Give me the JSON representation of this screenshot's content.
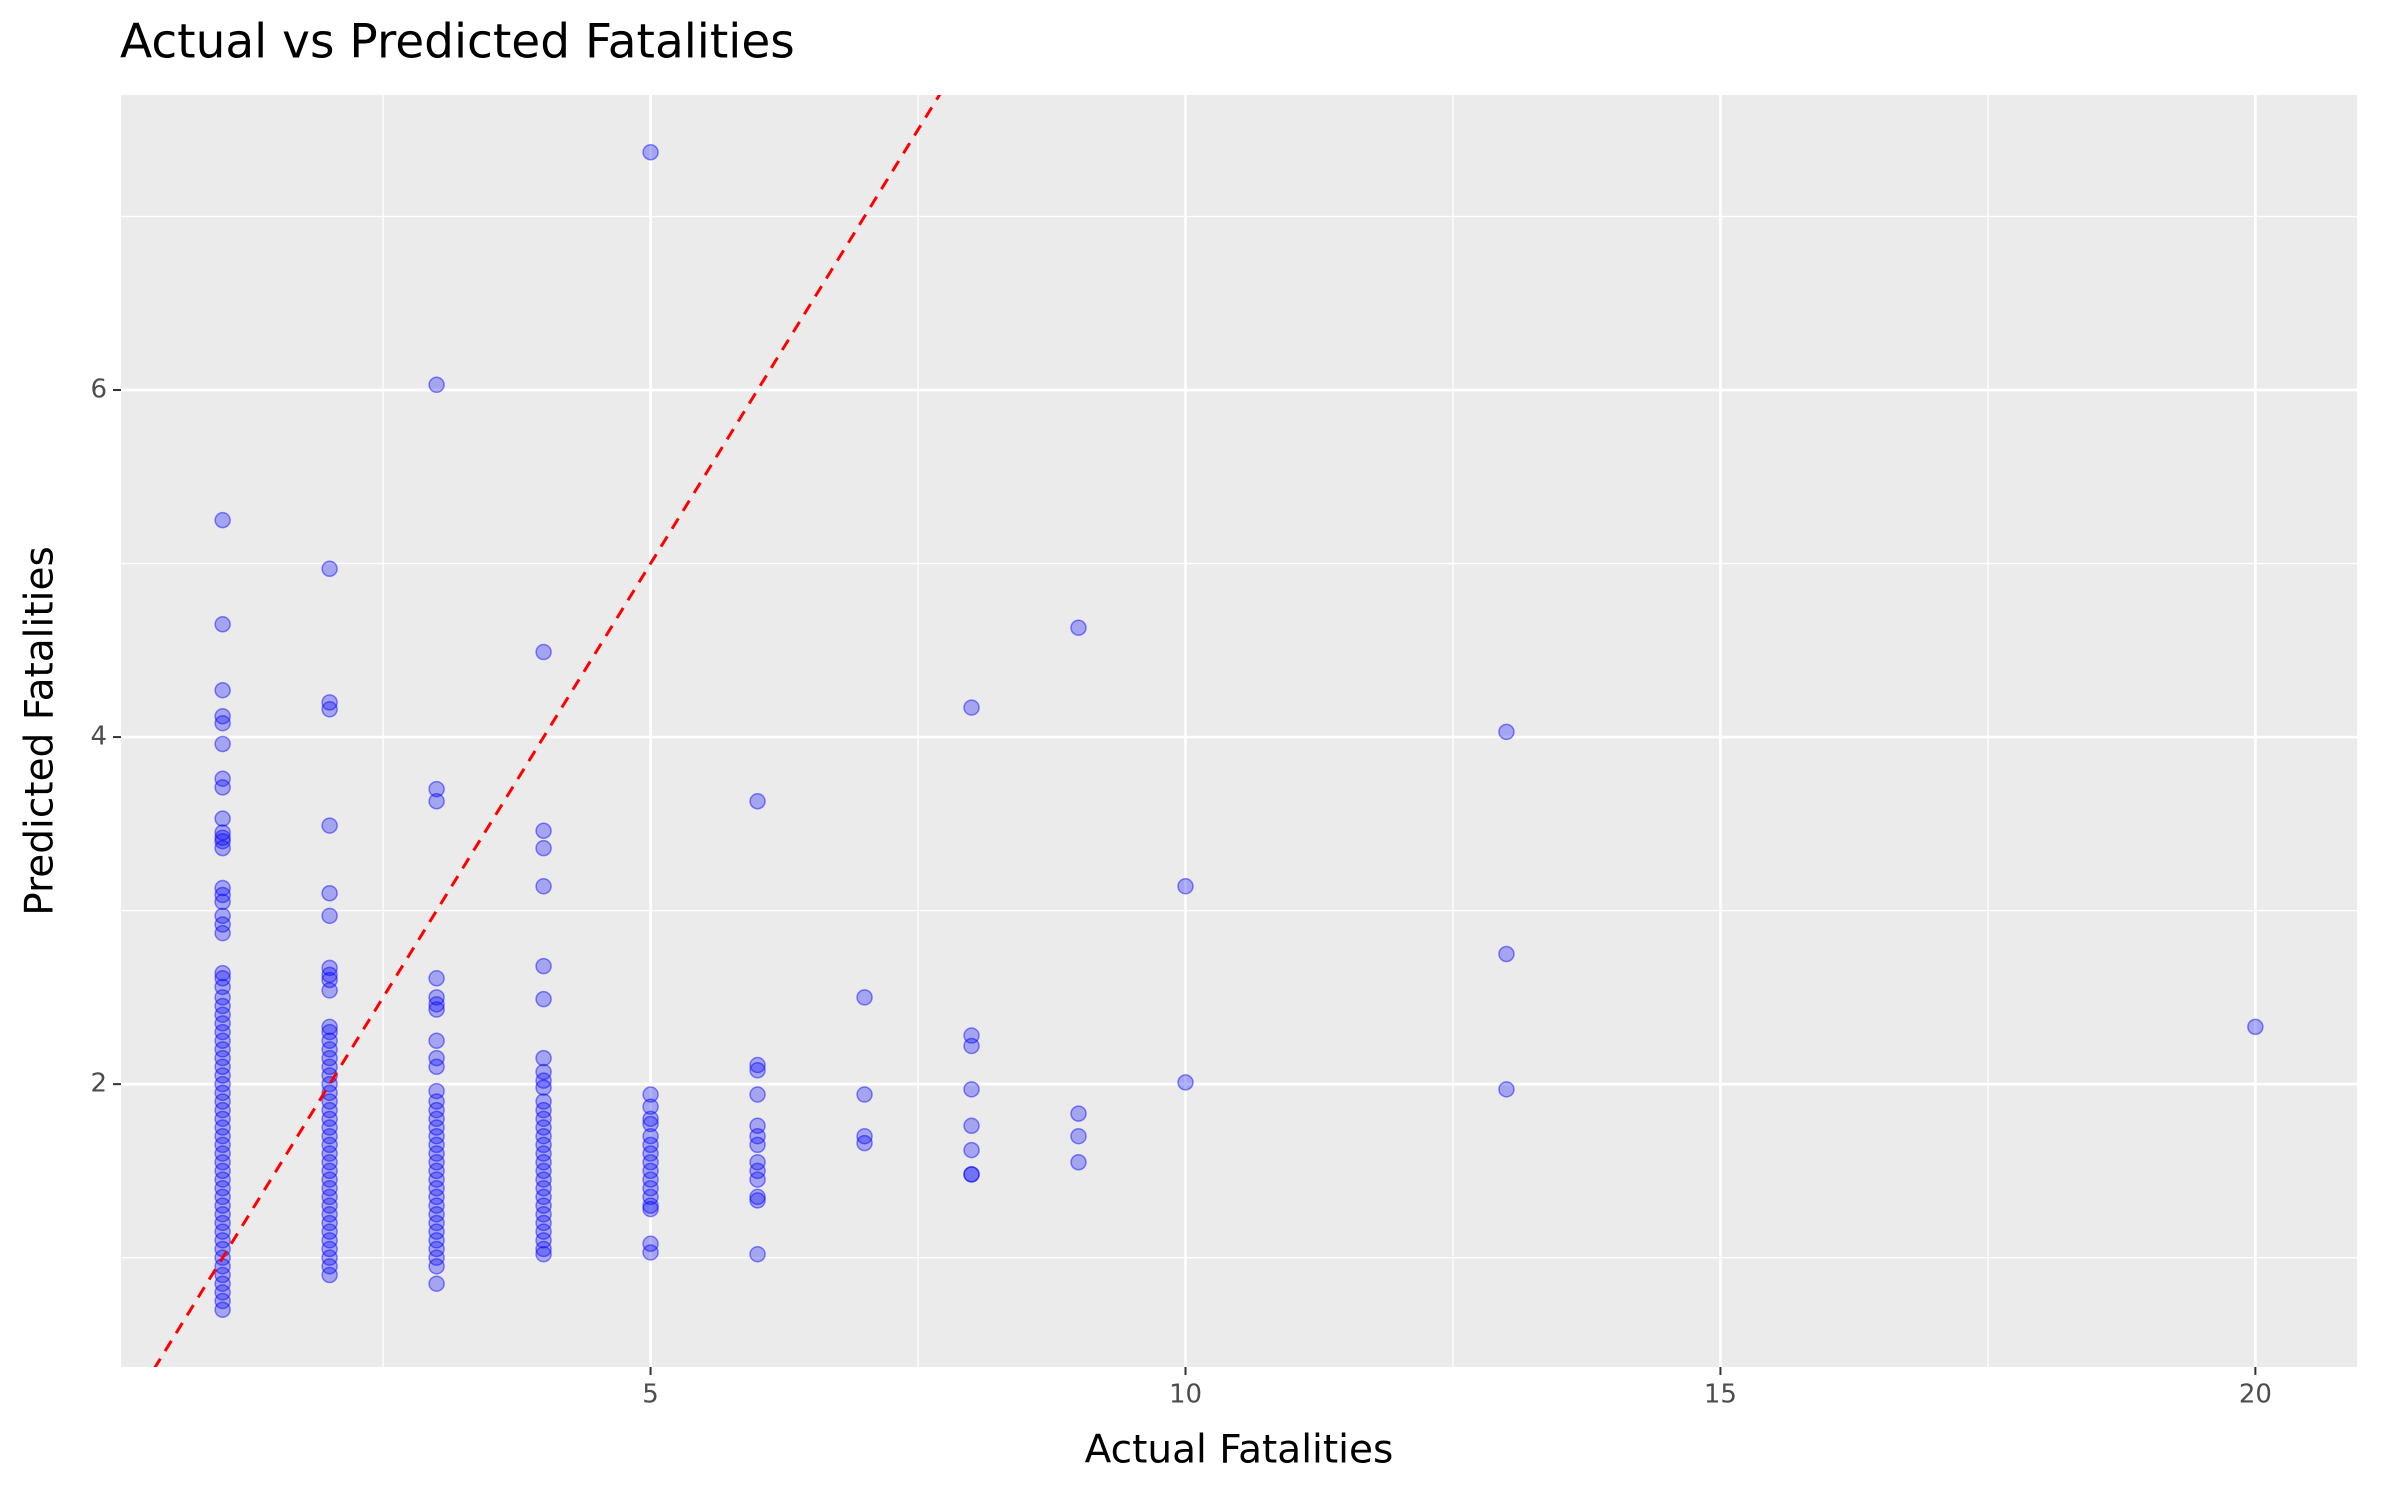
{
  "chart_data": {
    "type": "scatter",
    "title": "Actual vs Predicted Fatalities",
    "x_label": "Actual Fatalities",
    "y_label": "Predicted Fatalities",
    "color": "#0000ff",
    "grid": true,
    "xlim": [
      0.05,
      20.95
    ],
    "ylim": [
      0.37,
      7.7
    ],
    "xticks": [
      5,
      10,
      15,
      20
    ],
    "yticks": [
      2,
      4,
      6
    ],
    "xminor": [
      2.5,
      7.5,
      12.5,
      17.5
    ],
    "yminor": [
      1,
      3,
      5,
      7
    ],
    "reference_line": {
      "slope": 1,
      "intercept": 0,
      "color": "#ff0000"
    },
    "x": [
      1,
      1,
      1,
      1,
      1,
      1,
      1,
      1,
      1,
      1,
      1,
      1,
      1,
      1,
      1,
      1,
      1,
      1,
      1,
      1,
      1,
      1,
      1,
      1,
      1,
      1,
      1,
      1,
      1,
      1,
      1,
      1,
      1,
      1,
      1,
      1,
      1,
      1,
      1,
      1,
      1,
      1,
      1,
      1,
      1,
      1,
      1,
      1,
      1,
      1,
      1,
      1,
      1,
      1,
      1,
      1,
      1,
      1,
      1,
      2,
      2,
      2,
      2,
      2,
      2,
      2,
      2,
      2,
      2,
      2,
      2,
      2,
      2,
      2,
      2,
      2,
      2,
      2,
      2,
      2,
      2,
      2,
      2,
      2,
      2,
      2,
      2,
      2,
      2,
      2,
      2,
      2,
      2,
      2,
      2,
      2,
      2,
      2,
      2,
      3,
      3,
      3,
      3,
      3,
      3,
      3,
      3,
      3,
      3,
      3,
      3,
      3,
      3,
      3,
      3,
      3,
      3,
      3,
      3,
      3,
      3,
      3,
      3,
      3,
      3,
      3,
      3,
      3,
      3,
      3,
      3,
      4,
      4,
      4,
      4,
      4,
      4,
      4,
      4,
      4,
      4,
      4,
      4,
      4,
      4,
      4,
      4,
      4,
      4,
      4,
      4,
      4,
      4,
      4,
      4,
      4,
      4,
      4,
      4,
      4,
      5,
      5,
      5,
      5,
      5,
      5,
      5,
      5,
      5,
      5,
      5,
      5,
      5,
      5,
      5,
      5,
      5,
      6,
      6,
      6,
      6,
      6,
      6,
      6,
      6,
      6,
      6,
      6,
      6,
      6,
      7,
      7,
      7,
      7,
      8,
      8,
      8,
      8,
      8,
      8,
      8,
      8,
      9,
      9,
      9,
      9,
      10,
      10,
      13,
      13,
      13,
      20
    ],
    "values": [
      5.25,
      4.65,
      4.27,
      4.12,
      4.08,
      3.96,
      3.76,
      3.71,
      3.53,
      3.45,
      3.42,
      3.4,
      3.36,
      3.13,
      3.09,
      3.05,
      2.97,
      2.92,
      2.87,
      2.64,
      2.61,
      2.56,
      2.5,
      2.45,
      2.4,
      2.35,
      2.3,
      2.25,
      2.2,
      2.15,
      2.1,
      2.05,
      2.0,
      1.95,
      1.9,
      1.85,
      1.8,
      1.75,
      1.7,
      1.65,
      1.6,
      1.55,
      1.5,
      1.45,
      1.4,
      1.35,
      1.3,
      1.25,
      1.2,
      1.15,
      1.1,
      1.05,
      1.0,
      0.95,
      0.9,
      0.85,
      0.8,
      0.75,
      0.7,
      4.97,
      4.2,
      4.16,
      3.49,
      3.1,
      2.97,
      2.67,
      2.63,
      2.6,
      2.54,
      2.33,
      2.3,
      2.25,
      2.2,
      2.15,
      2.1,
      2.05,
      2.0,
      1.95,
      1.9,
      1.85,
      1.8,
      1.75,
      1.7,
      1.65,
      1.6,
      1.55,
      1.5,
      1.45,
      1.4,
      1.35,
      1.3,
      1.25,
      1.2,
      1.15,
      1.1,
      1.05,
      1.0,
      0.95,
      0.9,
      6.03,
      3.7,
      3.63,
      2.61,
      2.5,
      2.46,
      2.43,
      2.25,
      2.15,
      2.1,
      1.96,
      1.9,
      1.85,
      1.8,
      1.75,
      1.7,
      1.65,
      1.6,
      1.55,
      1.5,
      1.45,
      1.4,
      1.35,
      1.3,
      1.25,
      1.2,
      1.15,
      1.1,
      1.05,
      1.0,
      0.95,
      0.85,
      4.49,
      3.46,
      3.36,
      3.14,
      2.68,
      2.49,
      2.15,
      2.07,
      2.02,
      1.98,
      1.9,
      1.85,
      1.8,
      1.75,
      1.7,
      1.65,
      1.6,
      1.55,
      1.5,
      1.45,
      1.4,
      1.35,
      1.3,
      1.25,
      1.2,
      1.15,
      1.1,
      1.05,
      1.02,
      7.37,
      1.94,
      1.87,
      1.8,
      1.77,
      1.7,
      1.65,
      1.6,
      1.55,
      1.5,
      1.45,
      1.4,
      1.35,
      1.3,
      1.28,
      1.08,
      1.03,
      3.63,
      2.11,
      2.08,
      1.94,
      1.76,
      1.7,
      1.65,
      1.55,
      1.5,
      1.45,
      1.35,
      1.33,
      1.02,
      2.5,
      1.94,
      1.7,
      1.66,
      4.17,
      2.28,
      2.22,
      1.97,
      1.76,
      1.62,
      1.48,
      1.48,
      4.63,
      1.83,
      1.7,
      1.55,
      3.14,
      2.01,
      4.03,
      2.75,
      1.97,
      2.33
    ]
  }
}
